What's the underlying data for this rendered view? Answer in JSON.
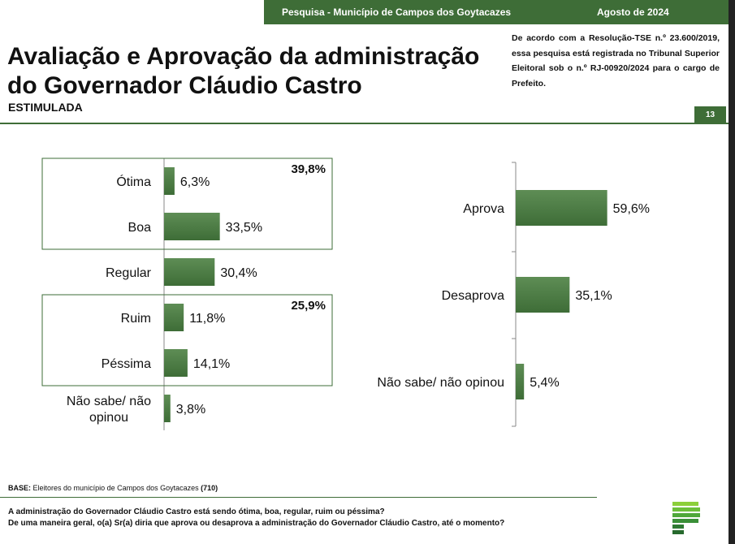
{
  "header": {
    "survey_label": "Pesquisa - Município de Campos dos Goytacazes",
    "date_label": "Agosto de 2024",
    "title_line1": "Avaliação e Aprovação da administração",
    "title_line2": "do Governador Cláudio Castro",
    "subtitle": "ESTIMULADA",
    "legal_note": "De acordo com a Resolução-TSE n.º 23.600/2019, essa pesquisa está registrada no Tribunal Superior Eleitoral sob o n.º RJ-00920/2024 para o cargo de Prefeito.",
    "page_number": "13"
  },
  "chart_data": [
    {
      "type": "bar",
      "orientation": "horizontal",
      "categories": [
        "Ótima",
        "Boa",
        "Regular",
        "Ruim",
        "Péssima",
        "Não sabe/ não opinou"
      ],
      "category_lines": [
        [
          "Ótima"
        ],
        [
          "Boa"
        ],
        [
          "Regular"
        ],
        [
          "Ruim"
        ],
        [
          "Péssima"
        ],
        [
          "Não sabe/ não",
          "opinou"
        ]
      ],
      "values": [
        6.3,
        33.5,
        30.4,
        11.8,
        14.1,
        3.8
      ],
      "value_labels": [
        "6,3%",
        "33,5%",
        "30,4%",
        "11,8%",
        "14,1%",
        "3,8%"
      ],
      "groups": [
        {
          "members": [
            "Ótima",
            "Boa"
          ],
          "total_label": "39,8%"
        },
        {
          "members": [
            "Ruim",
            "Péssima"
          ],
          "total_label": "25,9%"
        }
      ],
      "bar_color": "#3e6d37",
      "xlim": [
        0,
        100
      ]
    },
    {
      "type": "bar",
      "orientation": "horizontal",
      "categories": [
        "Aprova",
        "Desaprova",
        "Não sabe/ não opinou"
      ],
      "values": [
        59.6,
        35.1,
        5.4
      ],
      "value_labels": [
        "59,6%",
        "35,1%",
        "5,4%"
      ],
      "bar_color": "#3e6d37",
      "xlim": [
        0,
        100
      ]
    }
  ],
  "footer": {
    "base_label": "BASE:",
    "base_text": "Eleitores do município de Campos dos Goytacazes",
    "base_count": "(710)",
    "question1": "A administração do Governador Cláudio Castro está sendo ótima, boa, regular, ruim ou péssima?",
    "question2": "De uma maneira geral, o(a) Sr(a) diria que aprova ou desaprova a administração do Governador Cláudio Castro, até o momento?"
  }
}
